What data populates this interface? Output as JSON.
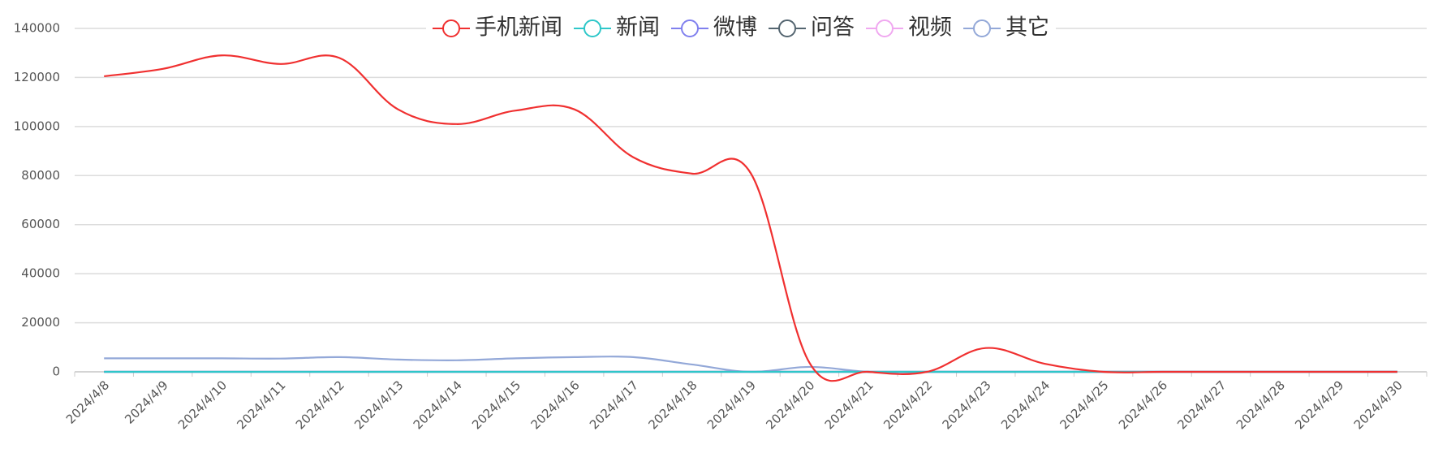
{
  "chart_data": {
    "type": "line",
    "categories": [
      "2024/4/8",
      "2024/4/9",
      "2024/4/10",
      "2024/4/11",
      "2024/4/12",
      "2024/4/13",
      "2024/4/14",
      "2024/4/15",
      "2024/4/16",
      "2024/4/17",
      "2024/4/18",
      "2024/4/19",
      "2024/4/20",
      "2024/4/21",
      "2024/4/22",
      "2024/4/23",
      "2024/4/24",
      "2024/4/25",
      "2024/4/26",
      "2024/4/27",
      "2024/4/28",
      "2024/4/29",
      "2024/4/30"
    ],
    "series": [
      {
        "name": "手机新闻",
        "color": "#f03030",
        "values": [
          120500,
          123500,
          129000,
          125500,
          128000,
          107000,
          101000,
          106500,
          107000,
          87500,
          80800,
          81000,
          3700,
          0,
          0,
          9700,
          3300,
          0,
          0,
          0,
          0,
          0,
          0
        ]
      },
      {
        "name": "新闻",
        "color": "#2ec7c9",
        "values": [
          0,
          0,
          0,
          0,
          0,
          0,
          0,
          0,
          0,
          0,
          0,
          0,
          0,
          0,
          0,
          0,
          0,
          0,
          0,
          0,
          0,
          0,
          0
        ]
      },
      {
        "name": "微博",
        "color": "#8080ee",
        "values": [
          0,
          0,
          0,
          0,
          0,
          0,
          0,
          0,
          0,
          0,
          0,
          0,
          0,
          0,
          0,
          0,
          0,
          0,
          0,
          0,
          0,
          0,
          0
        ]
      },
      {
        "name": "问答",
        "color": "#546570",
        "values": [
          0,
          0,
          0,
          0,
          0,
          0,
          0,
          0,
          0,
          0,
          0,
          0,
          0,
          0,
          0,
          0,
          0,
          0,
          0,
          0,
          0,
          0,
          0
        ]
      },
      {
        "name": "视频",
        "color": "#f0a8f0",
        "values": [
          0,
          0,
          0,
          0,
          0,
          0,
          0,
          0,
          0,
          0,
          0,
          0,
          0,
          0,
          0,
          0,
          0,
          0,
          0,
          0,
          0,
          0,
          0
        ]
      },
      {
        "name": "其它",
        "color": "#93a8d8",
        "values": [
          5500,
          5500,
          5500,
          5400,
          6000,
          5000,
          4700,
          5500,
          6000,
          6000,
          3000,
          0,
          2000,
          0,
          0,
          0,
          0,
          0,
          0,
          0,
          0,
          0,
          0
        ]
      }
    ],
    "ylim": [
      0,
      140000
    ],
    "yticks": [
      0,
      20000,
      40000,
      60000,
      80000,
      100000,
      120000,
      140000
    ],
    "grid": true
  }
}
